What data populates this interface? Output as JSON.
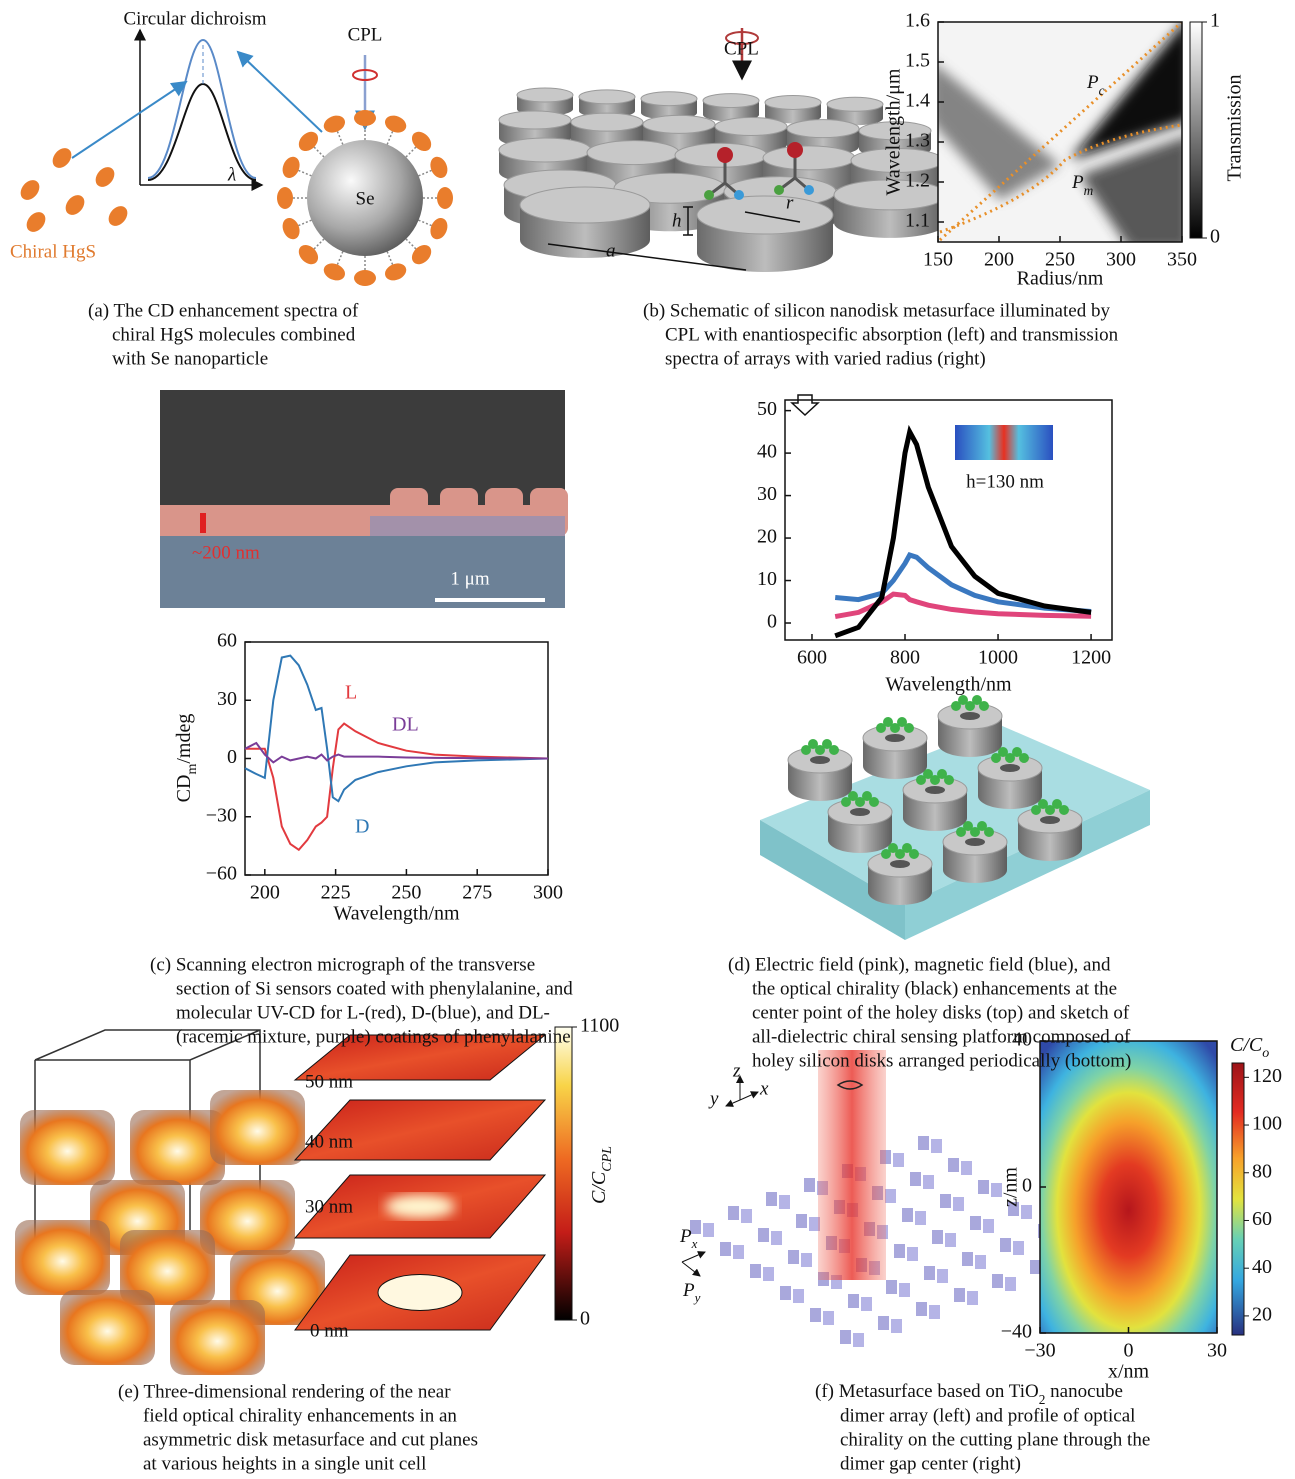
{
  "panels": {
    "a": {
      "title": "Circular dichroism",
      "cpl": "CPL",
      "axis_symbol": "λ",
      "particle": "Se",
      "molecule": "Chiral HgS",
      "caption": [
        "(a) The CD enhancement spectra of",
        "chiral HgS molecules combined",
        "with Se nanoparticle"
      ]
    },
    "b": {
      "cpl": "CPL",
      "height": "h",
      "radius": "r",
      "period": "a",
      "chart": {
        "type": "heatmap",
        "x_label": "Radius/nm",
        "y_label": "Wavelength/μm",
        "colorbar_label": "Transmission",
        "xlim": [
          150,
          350
        ],
        "ylim": [
          1.05,
          1.6
        ],
        "xticks": [
          150,
          200,
          250,
          300,
          350
        ],
        "yticks": [
          1.1,
          1.2,
          1.3,
          1.4,
          1.5,
          1.6
        ],
        "clim": [
          0,
          1
        ],
        "cticks": [
          0,
          1
        ],
        "mode_labels": [
          [
            "P",
            "c"
          ],
          [
            "P",
            "m"
          ]
        ]
      },
      "caption": [
        "(b) Schematic of silicon nanodisk metasurface illuminated by",
        "CPL with enantiospecific absorption (left) and transmission",
        "spectra of arrays with varied radius (right)"
      ]
    },
    "c": {
      "sem": {
        "thickness": "~200 nm",
        "scale_bar": "1 μm"
      },
      "chart": {
        "type": "line",
        "x_label": "Wavelength/nm",
        "y_label": [
          "CD",
          "m",
          "/mdeg"
        ],
        "xlim": [
          193,
          300
        ],
        "ylim": [
          -60,
          60
        ],
        "xticks": [
          200,
          225,
          250,
          275,
          300
        ],
        "yticks": [
          {
            "value": -60,
            "label": "−60"
          },
          {
            "value": -30,
            "label": "−30"
          },
          0,
          30,
          60
        ],
        "x": [
          193,
          197,
          200,
          203,
          206,
          209,
          212,
          215,
          218,
          220,
          222,
          224,
          226,
          228,
          232,
          240,
          250,
          260,
          275,
          300
        ],
        "series": [
          {
            "name": "L",
            "color": "#e23a3f",
            "values": [
              5,
              5,
              5,
              -10,
              -35,
              -44,
              -47,
              -42,
              -35,
              -33,
              -30,
              -5,
              15,
              18,
              14,
              8,
              4,
              2,
              1,
              0
            ]
          },
          {
            "name": "D",
            "color": "#2f78b5",
            "values": [
              -5,
              -8,
              -10,
              30,
              52,
              53,
              48,
              38,
              25,
              26,
              5,
              -20,
              -22,
              -16,
              -11,
              -7,
              -4,
              -2,
              -1,
              0
            ]
          },
          {
            "name": "DL",
            "color": "#7a3d98",
            "values": [
              5,
              8,
              2,
              -2,
              1,
              -1,
              0,
              1,
              0,
              2,
              -1,
              1,
              2,
              1,
              1,
              1,
              0.5,
              0.3,
              0.2,
              0
            ]
          }
        ]
      },
      "caption": [
        "(c) Scanning electron micrograph of the transverse",
        "section of Si sensors coated with phenylalanine, and",
        "molecular UV-CD for L-(red), D-(blue), and DL-",
        "(racemic mixture, purple) coatings of phenylalanine"
      ]
    },
    "d": {
      "chart": {
        "type": "line",
        "x_label": "Wavelength/nm",
        "inset": "h=130 nm",
        "xlim": [
          542,
          1245
        ],
        "ylim": [
          -4,
          52.5
        ],
        "xticks": [
          600,
          800,
          1000,
          1200
        ],
        "yticks": [
          0,
          10,
          20,
          30,
          40,
          50
        ],
        "x": [
          650,
          700,
          750,
          775,
          800,
          810,
          825,
          850,
          900,
          950,
          1000,
          1100,
          1200
        ],
        "series": [
          {
            "color": "#e0457b",
            "values": [
              1.5,
              2.5,
              5,
              6.8,
              6.5,
              5.5,
              5,
              4.2,
              3.2,
              2.6,
              2.2,
              1.8,
              1.6
            ]
          },
          {
            "color": "#3a78c0",
            "values": [
              6,
              5.5,
              7,
              10,
              14,
              16,
              15.5,
              13,
              9,
              6.5,
              5,
              3.5,
              2.7
            ]
          },
          {
            "color": "#000000",
            "values": [
              -3,
              -1,
              6,
              20,
              40,
              45,
              42,
              32,
              18,
              11,
              7,
              4,
              2.5
            ]
          }
        ]
      },
      "caption": [
        "(d) Electric field (pink), magnetic field (blue), and",
        "the optical chirality (black) enhancements at the",
        "center point of the holey disks (top) and sketch of",
        "all-dielectric chiral sensing platform composed of",
        "holey silicon disks arranged periodically (bottom)"
      ]
    },
    "e": {
      "heights": [
        "50 nm",
        "40 nm",
        "30 nm",
        "0 nm"
      ],
      "colorbar": {
        "label": [
          "C/C",
          "CPL"
        ],
        "clim": [
          0,
          1100
        ],
        "cticks": [
          0,
          1100
        ]
      },
      "caption": [
        "(e) Three-dimensional rendering of the near",
        "field optical chirality enhancements in an",
        "asymmetric disk metasurface and cut planes",
        "at various heights in a single unit cell"
      ]
    },
    "f": {
      "axes": {
        "z": "z",
        "y": "y",
        "x": "x"
      },
      "periods": [
        [
          "P",
          "x"
        ],
        [
          "P",
          "y"
        ]
      ],
      "chart": {
        "type": "heatmap",
        "x_label": "x/nm",
        "y_label": "z/nm",
        "colorbar_label": [
          "C/C",
          "o"
        ],
        "xlim": [
          -30,
          30
        ],
        "ylim": [
          -40,
          40
        ],
        "xticks": [
          {
            "value": -30,
            "label": "−30"
          },
          0,
          30
        ],
        "yticks": [
          {
            "value": -40,
            "label": "−40"
          },
          0,
          40
        ],
        "clim": [
          12,
          126
        ],
        "cticks": [
          20,
          40,
          60,
          80,
          100,
          120
        ]
      },
      "caption": [
        {
          "text": "(f) Metasurface based on TiO",
          "sub": "2",
          "after": " nanocube"
        },
        "dimer array (left) and profile of optical",
        "chirality on the cutting plane through the",
        "dimer gap center (right)"
      ]
    }
  }
}
